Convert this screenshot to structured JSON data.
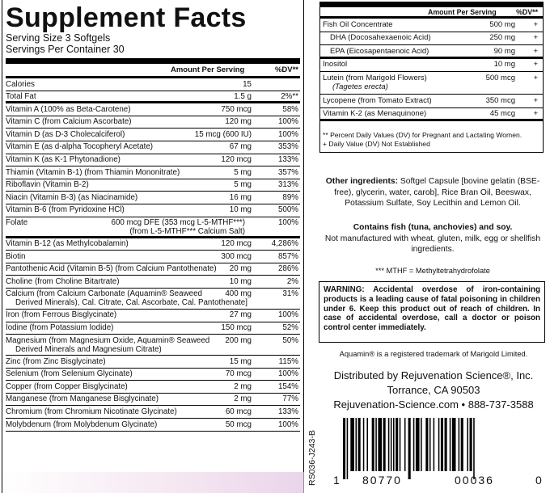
{
  "panel": {
    "title": "Supplement Facts",
    "serving_size": "Serving Size 3 Softgels",
    "servings_per_container": "Servings Per Container 30",
    "amount_header": "Amount Per Serving",
    "dv_header": "%DV**"
  },
  "nutrients": [
    {
      "name": "Calories",
      "amount": "15",
      "dv": ""
    },
    {
      "name": "Total Fat",
      "amount": "1.5 g",
      "dv": "2%**"
    },
    {
      "name": "Vitamin A (100% as Beta-Carotene)",
      "amount": "750 mcg",
      "dv": "58%"
    },
    {
      "name": "Vitamin C (from Calcium Ascorbate)",
      "amount": "120 mg",
      "dv": "100%"
    },
    {
      "name": "Vitamin D (as D-3 Cholecalciferol)",
      "amount": "15 mcg (600 IU)",
      "dv": "100%"
    },
    {
      "name": "Vitamin E (as d-alpha Tocopheryl Acetate)",
      "amount": "67 mg",
      "dv": "353%"
    },
    {
      "name": "Vitamin K (as K-1 Phytonadione)",
      "amount": "120 mcg",
      "dv": "133%"
    },
    {
      "name": "Thiamin (Vitamin B-1) (from Thiamin Mononitrate)",
      "amount": "5 mg",
      "dv": "357%"
    },
    {
      "name": "Riboflavin (Vitamin B-2)",
      "amount": "5 mg",
      "dv": "313%"
    },
    {
      "name": "Niacin (Vitamin B-3) (as Niacinamide)",
      "amount": "16 mg",
      "dv": "89%"
    },
    {
      "name": "Vitamin B-6 (from Pyridoxine HCl)",
      "amount": "10 mg",
      "dv": "500%"
    },
    {
      "name": "Folate",
      "amount": "600 mcg DFE (353 mcg L-5-MTHF***)",
      "amount2": "(from L-5-MTHF*** Calcium Salt)",
      "dv": "100%"
    },
    {
      "name": "Vitamin B-12 (as Methylcobalamin)",
      "amount": "120 mcg",
      "dv": "4,286%"
    },
    {
      "name": "Biotin",
      "amount": "300 mcg",
      "dv": "857%"
    },
    {
      "name": "Pantothenic Acid (Vitamin B-5) (from Calcium Pantothenate)",
      "amount": "20 mg",
      "dv": "286%"
    },
    {
      "name": "Choline (from Choline Bitartrate)",
      "amount": "10 mg",
      "dv": "2%"
    },
    {
      "name": "Calcium (from Calcium Carbonate (Aquamin® Seaweed",
      "name2": "Derived Minerals), Cal. Citrate, Cal. Ascorbate, Cal. Pantothenate]",
      "amount": "400 mg",
      "dv": "31%"
    },
    {
      "name": "Iron (from Ferrous Bisglycinate)",
      "amount": "27 mg",
      "dv": "100%"
    },
    {
      "name": "Iodine (from Potassium Iodide)",
      "amount": "150 mcg",
      "dv": "52%"
    },
    {
      "name": "Magnesium (from Magnesium Oxide, Aquamin® Seaweed",
      "name2": "Derived Minerals and Magnesium Citrate)",
      "amount": "200 mg",
      "dv": "50%"
    },
    {
      "name": "Zinc (from Zinc Bisglycinate)",
      "amount": "15 mg",
      "dv": "115%"
    },
    {
      "name": "Selenium (from Selenium Glycinate)",
      "amount": "70 mcg",
      "dv": "100%"
    },
    {
      "name": "Copper (from Copper Bisglycinate)",
      "amount": "2 mg",
      "dv": "154%"
    },
    {
      "name": "Manganese (from Manganese Bisglycinate)",
      "amount": "2 mg",
      "dv": "77%"
    },
    {
      "name": "Chromium (from Chromium Nicotinate Glycinate)",
      "amount": "60 mcg",
      "dv": "133%"
    },
    {
      "name": "Molybdenum (from Molybdenum Glycinate)",
      "amount": "50 mcg",
      "dv": "100%"
    }
  ],
  "right_panel": {
    "amount_header": "Amount Per Serving",
    "dv_header": "%DV**",
    "rows": [
      {
        "name": "Fish Oil Concentrate",
        "amount": "500 mg",
        "dv": "+"
      },
      {
        "name": "DHA (Docosahexaenoic Acid)",
        "amount": "250 mg",
        "dv": "+"
      },
      {
        "name": "EPA (Eicosapentaenoic Acid)",
        "amount": "90 mg",
        "dv": "+"
      },
      {
        "name": "Inositol",
        "amount": "10 mg",
        "dv": "+"
      },
      {
        "name": "Lutein (from Marigold Flowers)",
        "name2": "(Tagetes erecta)",
        "amount": "500 mcg",
        "dv": "+"
      },
      {
        "name": "Lycopene (from Tomato Extract)",
        "amount": "350 mcg",
        "dv": "+"
      },
      {
        "name": "Vitamin K-2 (as Menaquinone)",
        "amount": "45 mcg",
        "dv": "+"
      }
    ],
    "note1": "** Percent Daily Values (DV) for Pregnant and Lactating Women.",
    "note2": "+ Daily Value (DV) Not Established"
  },
  "other_ingredients": {
    "label": "Other ingredients:",
    "text": " Softgel Capsule [bovine gelatin (BSE-free), glycerin, water, carob], Rice Bran Oil, Beeswax, Potassium Sulfate, Soy Lecithin and Lemon Oil."
  },
  "allergen": {
    "contains": "Contains fish (tuna, anchovies) and soy.",
    "note": "Not manufactured with wheat, gluten, milk, egg or shellfish ingredients."
  },
  "mthf_note": "*** MTHF = Methyltetrahydrofolate",
  "warning": "WARNING: Accidental overdose of iron-containing products is a leading cause of fatal poisoning in children under 6. Keep this product out of reach of children. In case of accidental overdose, call a doctor or poison control center immediately.",
  "trademark": "Aquamin® is a registered trademark of Marigold Limited.",
  "distributor": {
    "line1": "Distributed by Rejuvenation Science®, Inc.",
    "line2": "Torrance, CA  90503",
    "line3": "Rejuvenation-Science.com • 888-737-3588"
  },
  "code": "RS036-J243-B",
  "barcode": {
    "digit_first": "1",
    "group1": "80770",
    "group2": "00036",
    "digit_last": "0"
  }
}
